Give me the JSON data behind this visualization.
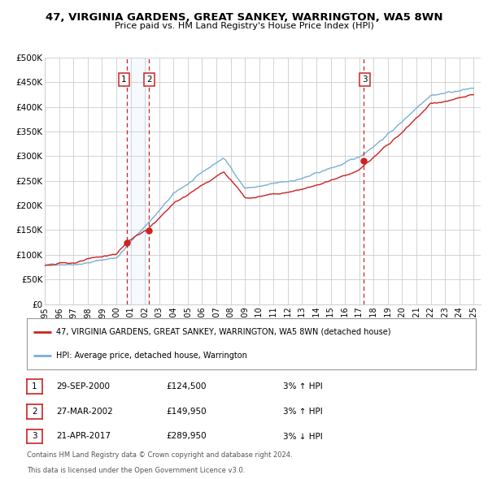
{
  "title": "47, VIRGINIA GARDENS, GREAT SANKEY, WARRINGTON, WA5 8WN",
  "subtitle": "Price paid vs. HM Land Registry's House Price Index (HPI)",
  "ylim": [
    0,
    500000
  ],
  "yticks": [
    0,
    50000,
    100000,
    150000,
    200000,
    250000,
    300000,
    350000,
    400000,
    450000,
    500000
  ],
  "ytick_labels": [
    "£0",
    "£50K",
    "£100K",
    "£150K",
    "£200K",
    "£250K",
    "£300K",
    "£350K",
    "£400K",
    "£450K",
    "£500K"
  ],
  "x_start_year": 1995,
  "x_end_year": 2025,
  "sale_years_num": [
    2000.75,
    2002.25,
    2017.3
  ],
  "sale_prices": [
    124500,
    149950,
    289950
  ],
  "sale_labels": [
    "1",
    "2",
    "3"
  ],
  "legend_line1": "47, VIRGINIA GARDENS, GREAT SANKEY, WARRINGTON, WA5 8WN (detached house)",
  "legend_line2": "HPI: Average price, detached house, Warrington",
  "table_rows": [
    {
      "num": "1",
      "date": "29-SEP-2000",
      "price": "£124,500",
      "hpi": "3% ↑ HPI"
    },
    {
      "num": "2",
      "date": "27-MAR-2002",
      "price": "£149,950",
      "hpi": "3% ↑ HPI"
    },
    {
      "num": "3",
      "date": "21-APR-2017",
      "price": "£289,950",
      "hpi": "3% ↓ HPI"
    }
  ],
  "footer1": "Contains HM Land Registry data © Crown copyright and database right 2024.",
  "footer2": "This data is licensed under the Open Government Licence v3.0.",
  "hpi_line_color": "#7bafd4",
  "sale_line_color": "#cc2222",
  "bg_shade_color": "#ddeeff",
  "grid_color": "#cccccc",
  "marker_color": "#cc2222",
  "dashed_color": "#cc2222",
  "box_color": "#cc2222"
}
